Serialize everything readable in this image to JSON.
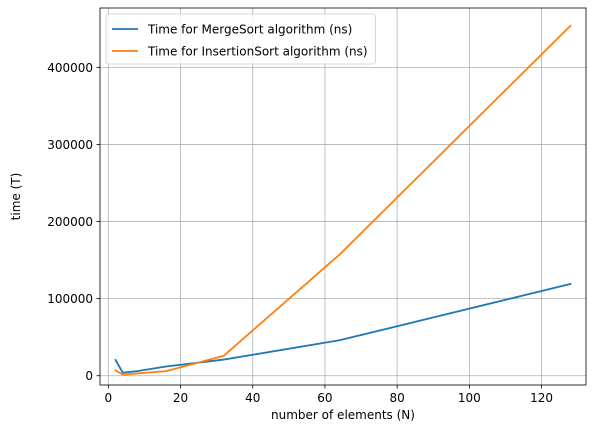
{
  "chart_data": {
    "type": "line",
    "title": "",
    "xlabel": "number of elements (N)",
    "ylabel": "time (T)",
    "xlim": [
      -2.3,
      132.3
    ],
    "ylim": [
      -12000,
      477000
    ],
    "xticks": [
      0,
      20,
      40,
      60,
      80,
      100,
      120
    ],
    "yticks": [
      0,
      100000,
      200000,
      300000,
      400000
    ],
    "grid": true,
    "legend_position": "top-left",
    "series": [
      {
        "name": "Time for MergeSort algorithm (ns)",
        "color": "#1f77b4",
        "x": [
          2,
          4,
          8,
          16,
          32,
          64,
          128
        ],
        "y": [
          20500,
          4000,
          6000,
          12000,
          21000,
          46000,
          119000
        ]
      },
      {
        "name": "Time for InsertionSort algorithm (ns)",
        "color": "#ff7f0e",
        "x": [
          2,
          4,
          8,
          16,
          32,
          64,
          128
        ],
        "y": [
          7000,
          1500,
          3000,
          6000,
          26000,
          157000,
          454000
        ]
      }
    ]
  }
}
